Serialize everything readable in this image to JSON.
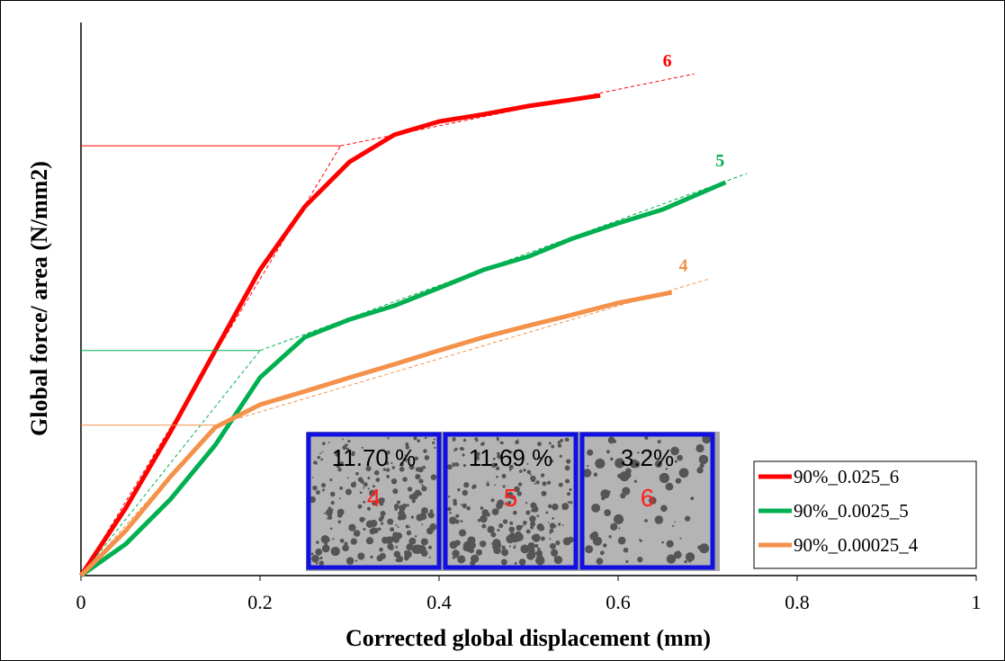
{
  "chart_data": {
    "type": "line",
    "x_label": "Corrected global displacement (mm)",
    "y_label": "Global force/ area (N/mm2)",
    "xlim": [
      0,
      1
    ],
    "xticks": [
      0,
      0.2,
      0.4,
      0.6,
      0.8,
      1
    ],
    "ylim": [
      0,
      1
    ],
    "series": [
      {
        "name": "90%_0.025_6",
        "color": "#ff0000",
        "curve_label": "6",
        "x": [
          0,
          0.05,
          0.1,
          0.15,
          0.2,
          0.25,
          0.3,
          0.35,
          0.4,
          0.45,
          0.5,
          0.58
        ],
        "values": [
          0,
          0.122,
          0.26,
          0.407,
          0.553,
          0.667,
          0.748,
          0.797,
          0.821,
          0.834,
          0.849,
          0.868
        ],
        "knee": [
          0.29,
          0.777
        ],
        "end": [
          0.685,
          0.907
        ]
      },
      {
        "name": "90%_0.0025_5",
        "color": "#00b050",
        "curve_label": "5",
        "x": [
          0,
          0.05,
          0.1,
          0.15,
          0.2,
          0.25,
          0.3,
          0.35,
          0.4,
          0.45,
          0.5,
          0.55,
          0.6,
          0.65,
          0.72
        ],
        "values": [
          0,
          0.057,
          0.138,
          0.236,
          0.358,
          0.431,
          0.463,
          0.488,
          0.52,
          0.553,
          0.577,
          0.61,
          0.637,
          0.662,
          0.711
        ],
        "knee": [
          0.2,
          0.407
        ],
        "end": [
          0.744,
          0.727
        ]
      },
      {
        "name": "90%_0.00025_4",
        "color": "#f4914a",
        "curve_label": "4",
        "x": [
          0,
          0.05,
          0.1,
          0.15,
          0.2,
          0.25,
          0.3,
          0.35,
          0.4,
          0.45,
          0.5,
          0.55,
          0.6,
          0.66
        ],
        "values": [
          0,
          0.081,
          0.179,
          0.268,
          0.309,
          0.333,
          0.358,
          0.382,
          0.407,
          0.431,
          0.452,
          0.472,
          0.493,
          0.512
        ],
        "knee": [
          0.15,
          0.272
        ],
        "end": [
          0.703,
          0.537
        ]
      }
    ],
    "insets": [
      {
        "porosity": "11.70 %",
        "label": "4"
      },
      {
        "porosity": "11.69 %",
        "label": "5"
      },
      {
        "porosity": "3.2%",
        "label": "6"
      }
    ]
  }
}
